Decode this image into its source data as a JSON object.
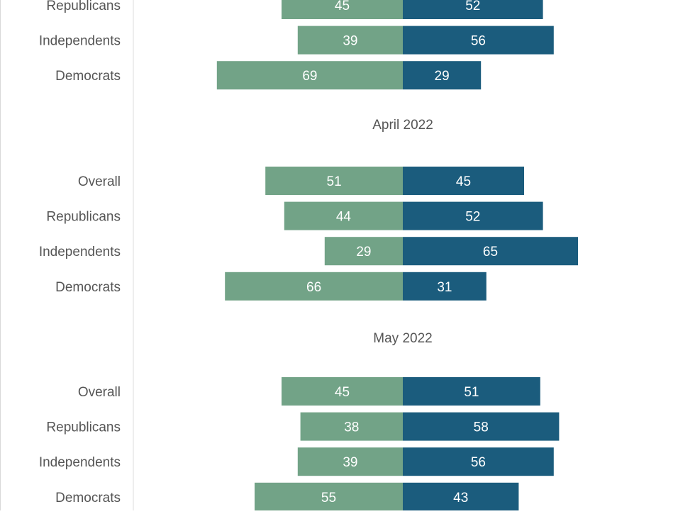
{
  "chart_data": {
    "type": "bar",
    "orientation": "horizontal-diverging",
    "colors": {
      "left": "#72a387",
      "right": "#1b5c7d",
      "bar_label": "#ffffff",
      "text": "#555555",
      "axis": "#dddddd"
    },
    "groups": [
      {
        "title": "",
        "rows": [
          {
            "category": "Republicans",
            "left": 45,
            "right": 52
          },
          {
            "category": "Independents",
            "left": 39,
            "right": 56
          },
          {
            "category": "Democrats",
            "left": 69,
            "right": 29
          }
        ]
      },
      {
        "title": "April 2022",
        "rows": [
          {
            "category": "Overall",
            "left": 51,
            "right": 45
          },
          {
            "category": "Republicans",
            "left": 44,
            "right": 52
          },
          {
            "category": "Independents",
            "left": 29,
            "right": 65
          },
          {
            "category": "Democrats",
            "left": 66,
            "right": 31
          }
        ]
      },
      {
        "title": "May 2022",
        "rows": [
          {
            "category": "Overall",
            "left": 45,
            "right": 51
          },
          {
            "category": "Republicans",
            "left": 38,
            "right": 58
          },
          {
            "category": "Independents",
            "left": 39,
            "right": 56
          },
          {
            "category": "Democrats",
            "left": 55,
            "right": 43
          }
        ]
      }
    ]
  }
}
